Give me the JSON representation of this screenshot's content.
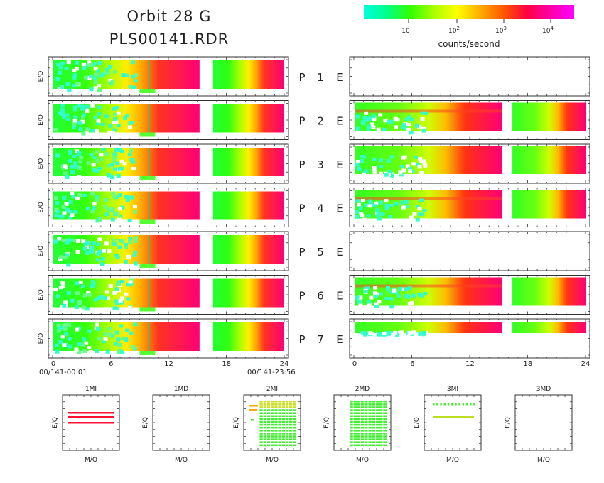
{
  "header": {
    "title_line1": "Orbit 28 G",
    "title_line2": "PLS00141.RDR"
  },
  "colorbar": {
    "label": "counts/second",
    "ticks": [
      {
        "base": "10",
        "exp": ""
      },
      {
        "base": "10",
        "exp": "2"
      },
      {
        "base": "10",
        "exp": "3"
      },
      {
        "base": "10",
        "exp": "4"
      }
    ],
    "colors": [
      "#00ffdd",
      "#00ff88",
      "#33ff00",
      "#aaff00",
      "#ffff00",
      "#ffaa00",
      "#ff5500",
      "#ff0044",
      "#ff00aa",
      "#ff00ff"
    ]
  },
  "chart_data": [
    {
      "type": "heatmap",
      "name": "time-spectrograms",
      "ylabel": "E/Q",
      "x_ticks": [
        "0",
        "6",
        "12",
        "18",
        "24"
      ],
      "xlim": [
        0,
        24
      ],
      "time_start": "00/141-00:01",
      "time_end": "00/141-23:56",
      "rows": [
        {
          "label_p": "P",
          "num": "1",
          "label_e": "E",
          "p_panel": true,
          "e_panel": false
        },
        {
          "label_p": "P",
          "num": "2",
          "label_e": "E",
          "p_panel": true,
          "e_panel": true
        },
        {
          "label_p": "P",
          "num": "3",
          "label_e": "E",
          "p_panel": true,
          "e_panel": true
        },
        {
          "label_p": "P",
          "num": "4",
          "label_e": "E",
          "p_panel": true,
          "e_panel": true
        },
        {
          "label_p": "P",
          "num": "5",
          "label_e": "E",
          "p_panel": true,
          "e_panel": false
        },
        {
          "label_p": "P",
          "num": "6",
          "label_e": "E",
          "p_panel": true,
          "e_panel": true
        },
        {
          "label_p": "P",
          "num": "7",
          "label_e": "E",
          "p_panel": true,
          "e_panel": true
        }
      ]
    },
    {
      "type": "scatter",
      "name": "mass-per-charge-panels",
      "xlabel": "M/Q",
      "ylabel": "E/Q",
      "panels": [
        {
          "title": "1MI",
          "content": "lines"
        },
        {
          "title": "1MD",
          "content": "empty"
        },
        {
          "title": "2MI",
          "content": "grid"
        },
        {
          "title": "2MD",
          "content": "grid"
        },
        {
          "title": "3MI",
          "content": "sparse"
        },
        {
          "title": "3MD",
          "content": "empty"
        }
      ]
    }
  ]
}
